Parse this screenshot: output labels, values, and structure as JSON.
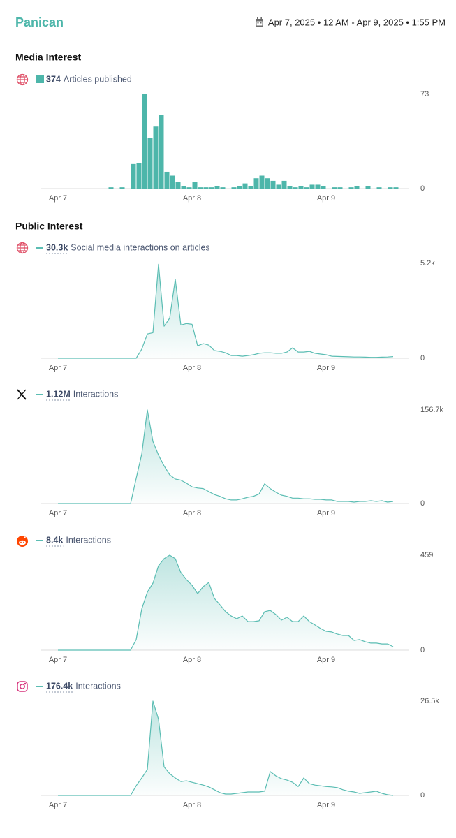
{
  "header": {
    "brand": "Panican",
    "date_range": "Apr 7, 2025 • 12 AM - Apr 9, 2025 • 1:55 PM"
  },
  "sections": [
    {
      "title": "Media Interest"
    },
    {
      "title": "Public Interest"
    }
  ],
  "chart_data": [
    {
      "type": "bar",
      "total": "374",
      "x": [
        12,
        14,
        16,
        17,
        18,
        19,
        20,
        21,
        22,
        23,
        24,
        25,
        26,
        27,
        28,
        29,
        30,
        31,
        32,
        34,
        35,
        36,
        37,
        38,
        39,
        40,
        41,
        42,
        43,
        44,
        45,
        46,
        47,
        48,
        49,
        50,
        52,
        53,
        55,
        56,
        58,
        60,
        62,
        63
      ],
      "series": [
        {
          "name": "Articles published",
          "color": "#4db6aa",
          "values": [
            1,
            1,
            19,
            20,
            73,
            39,
            48,
            57,
            13,
            10,
            5,
            2,
            1,
            5,
            1,
            1,
            1,
            2,
            1,
            1,
            2,
            4,
            2,
            8,
            10,
            8,
            6,
            3,
            6,
            2,
            1,
            2,
            1,
            3,
            3,
            2,
            1,
            1,
            1,
            2,
            2,
            1,
            1,
            1
          ]
        }
      ],
      "xlim": [
        0,
        65
      ],
      "xticks": [
        {
          "value": 3,
          "label": "Apr 7"
        },
        {
          "value": 27,
          "label": "Apr 8"
        },
        {
          "value": 51,
          "label": "Apr 9"
        }
      ],
      "ylim": [
        0,
        73
      ],
      "yticks": [
        0,
        73
      ],
      "grid": false
    },
    {
      "type": "line",
      "total": "30.3k",
      "x": [
        3,
        4,
        5,
        6,
        7,
        8,
        9,
        10,
        11,
        12,
        13,
        14,
        15,
        16,
        17,
        18,
        19,
        20,
        21,
        22,
        23,
        24,
        25,
        26,
        27,
        28,
        29,
        30,
        31,
        32,
        33,
        34,
        35,
        36,
        37,
        38,
        39,
        40,
        41,
        42,
        43,
        44,
        45,
        46,
        47,
        48,
        49,
        50,
        51,
        52,
        53,
        54,
        55,
        56,
        57,
        58,
        59,
        60,
        61,
        62,
        63
      ],
      "series": [
        {
          "name": "Social media interactions on articles",
          "color": "#5bbdb3",
          "values": [
            0,
            0,
            0,
            0,
            0,
            0,
            0,
            0,
            0,
            0,
            0,
            0,
            0,
            0,
            0,
            500,
            1330,
            1400,
            5150,
            1750,
            2200,
            4330,
            1820,
            1900,
            1860,
            680,
            800,
            720,
            420,
            380,
            300,
            150,
            150,
            110,
            150,
            190,
            270,
            300,
            300,
            270,
            270,
            340,
            570,
            340,
            340,
            380,
            270,
            230,
            190,
            110,
            100,
            90,
            80,
            70,
            70,
            60,
            50,
            50,
            60,
            70,
            90
          ]
        }
      ],
      "xlim": [
        0,
        65
      ],
      "xticks": [
        {
          "value": 3,
          "label": "Apr 7"
        },
        {
          "value": 27,
          "label": "Apr 8"
        },
        {
          "value": 51,
          "label": "Apr 9"
        }
      ],
      "ylim": [
        0,
        5200
      ],
      "yticks": [
        0,
        {
          "value": 5200,
          "label": "5.2k"
        }
      ],
      "grid": false
    },
    {
      "type": "line",
      "total": "1.12M",
      "x": [
        3,
        4,
        5,
        6,
        7,
        8,
        9,
        10,
        11,
        12,
        13,
        14,
        15,
        16,
        17,
        18,
        19,
        20,
        21,
        22,
        23,
        24,
        25,
        26,
        27,
        28,
        29,
        30,
        31,
        32,
        33,
        34,
        35,
        36,
        37,
        38,
        39,
        40,
        41,
        42,
        43,
        44,
        45,
        46,
        47,
        48,
        49,
        50,
        51,
        52,
        53,
        54,
        55,
        56,
        57,
        58,
        59,
        60,
        61,
        62,
        63
      ],
      "series": [
        {
          "name": "Interactions",
          "color": "#5bbdb3",
          "values": [
            0,
            0,
            0,
            0,
            0,
            0,
            0,
            0,
            0,
            0,
            0,
            0,
            0,
            0,
            42000,
            83000,
            156700,
            104000,
            81000,
            63000,
            48000,
            41000,
            39000,
            34000,
            28000,
            26000,
            25000,
            20000,
            15000,
            12000,
            8000,
            6000,
            6000,
            8000,
            10500,
            12000,
            16000,
            33000,
            25000,
            19000,
            14000,
            12000,
            9000,
            9000,
            8000,
            8000,
            7000,
            7000,
            6000,
            6000,
            3500,
            3500,
            3500,
            2300,
            3500,
            3500,
            4700,
            3500,
            4700,
            2300,
            3500
          ]
        }
      ],
      "xlim": [
        0,
        65
      ],
      "xticks": [
        {
          "value": 3,
          "label": "Apr 7"
        },
        {
          "value": 27,
          "label": "Apr 8"
        },
        {
          "value": 51,
          "label": "Apr 9"
        }
      ],
      "ylim": [
        0,
        156700
      ],
      "yticks": [
        0,
        {
          "value": 156700,
          "label": "156.7k"
        }
      ],
      "grid": false
    },
    {
      "type": "line",
      "total": "8.4k",
      "x": [
        3,
        4,
        5,
        6,
        7,
        8,
        9,
        10,
        11,
        12,
        13,
        14,
        15,
        16,
        17,
        18,
        19,
        20,
        21,
        22,
        23,
        24,
        25,
        26,
        27,
        28,
        29,
        30,
        31,
        32,
        33,
        34,
        35,
        36,
        37,
        38,
        39,
        40,
        41,
        42,
        43,
        44,
        45,
        46,
        47,
        48,
        49,
        50,
        51,
        52,
        53,
        54,
        55,
        56,
        57,
        58,
        59,
        60,
        61,
        62,
        63
      ],
      "series": [
        {
          "name": "Interactions",
          "color": "#5bbdb3",
          "values": [
            0,
            0,
            0,
            0,
            0,
            0,
            0,
            0,
            0,
            0,
            0,
            0,
            0,
            0,
            51,
            199,
            280,
            324,
            408,
            442,
            459,
            442,
            375,
            341,
            314,
            273,
            307,
            327,
            250,
            219,
            186,
            165,
            152,
            165,
            138,
            138,
            142,
            186,
            192,
            172,
            145,
            159,
            138,
            138,
            165,
            138,
            122,
            105,
            91,
            88,
            78,
            71,
            71,
            47,
            51,
            41,
            34,
            34,
            30,
            30,
            17
          ]
        }
      ],
      "xlim": [
        0,
        65
      ],
      "xticks": [
        {
          "value": 3,
          "label": "Apr 7"
        },
        {
          "value": 27,
          "label": "Apr 8"
        },
        {
          "value": 51,
          "label": "Apr 9"
        }
      ],
      "ylim": [
        0,
        459
      ],
      "yticks": [
        0,
        459
      ],
      "grid": false
    },
    {
      "type": "line",
      "total": "176.4k",
      "x": [
        3,
        4,
        5,
        6,
        7,
        8,
        9,
        10,
        11,
        12,
        13,
        14,
        15,
        16,
        17,
        18,
        19,
        20,
        21,
        22,
        23,
        24,
        25,
        26,
        27,
        28,
        29,
        30,
        31,
        32,
        33,
        34,
        35,
        36,
        37,
        38,
        39,
        40,
        41,
        42,
        43,
        44,
        45,
        46,
        47,
        48,
        49,
        50,
        51,
        52,
        53,
        54,
        55,
        56,
        57,
        58,
        59,
        60,
        61,
        62,
        63
      ],
      "series": [
        {
          "name": "Interactions",
          "color": "#5bbdb3",
          "values": [
            0,
            0,
            0,
            0,
            0,
            0,
            0,
            0,
            0,
            0,
            0,
            0,
            0,
            0,
            2700,
            4900,
            7300,
            26500,
            21400,
            8000,
            6100,
            4900,
            3900,
            4100,
            3700,
            3300,
            2900,
            2400,
            1600,
            780,
            390,
            390,
            590,
            780,
            980,
            980,
            980,
            1200,
            6700,
            5500,
            4700,
            4300,
            3700,
            2500,
            4900,
            3300,
            2900,
            2700,
            2500,
            2400,
            2200,
            1600,
            1200,
            980,
            590,
            780,
            980,
            1200,
            590,
            200,
            0
          ]
        }
      ],
      "xlim": [
        0,
        65
      ],
      "xticks": [
        {
          "value": 3,
          "label": "Apr 7"
        },
        {
          "value": 27,
          "label": "Apr 8"
        },
        {
          "value": 51,
          "label": "Apr 9"
        }
      ],
      "ylim": [
        0,
        26500
      ],
      "yticks": [
        0,
        {
          "value": 26500,
          "label": "26.5k"
        }
      ],
      "grid": false
    }
  ]
}
